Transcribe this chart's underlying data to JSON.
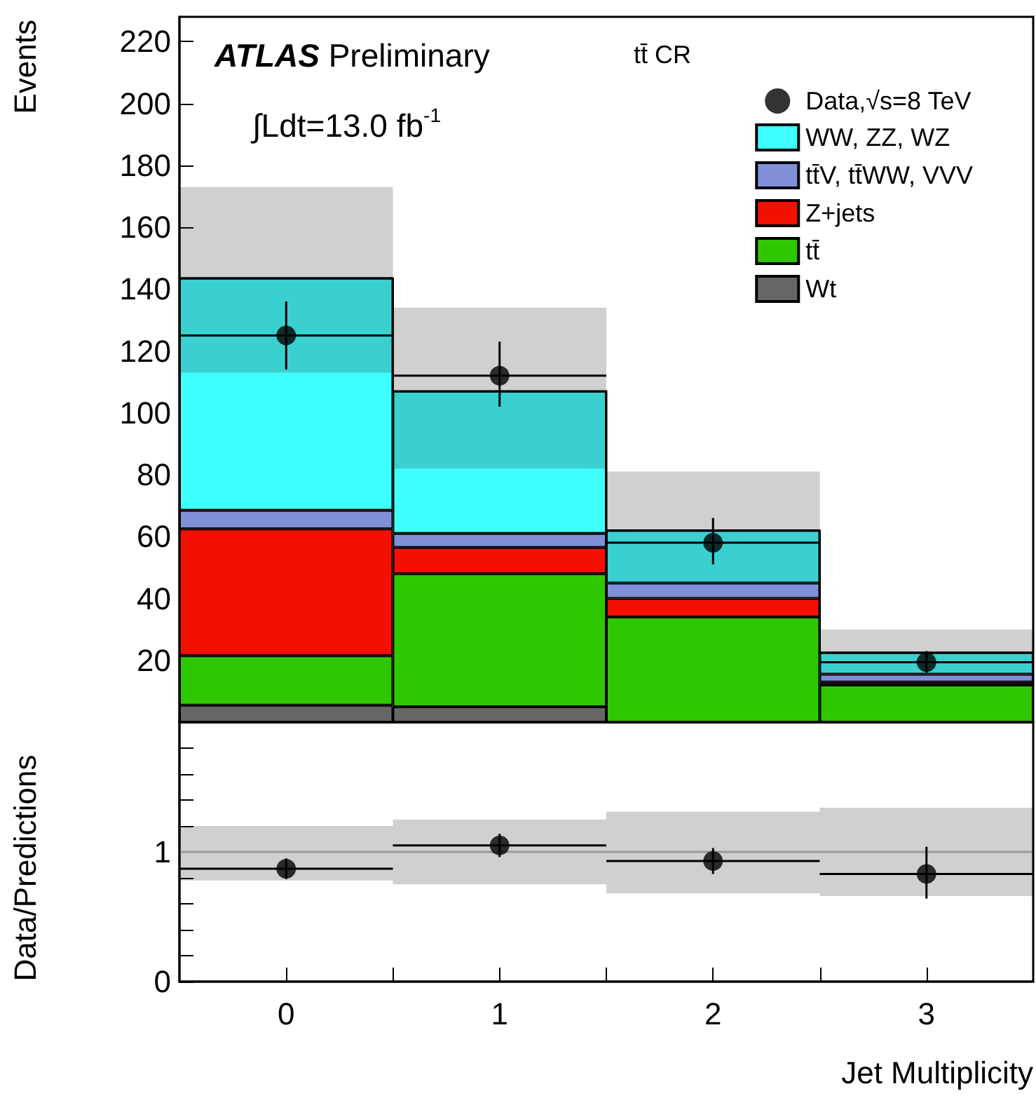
{
  "chart_data": [
    {
      "type": "bar",
      "stacked": true,
      "ylabel": "Events",
      "legend_title": "tt̄ CR",
      "legend": "top right",
      "tick_labels": "y",
      "annotations": [
        "ATLAS Preliminary",
        "∫Ldt=13.0 fb$^{-1}$"
      ],
      "x": [
        0,
        1,
        2,
        3
      ],
      "xlim": [
        -0.5,
        3.5
      ],
      "xticks": [
        0,
        1,
        2,
        3,
        {
          "value": 0.5,
          "label": null
        },
        {
          "value": 1.5,
          "label": null
        },
        {
          "value": 2.5,
          "label": null
        }
      ],
      "ylim": [
        0,
        228
      ],
      "yticks": [
        20,
        40,
        60,
        80,
        100,
        120,
        140,
        160,
        180,
        200,
        220
      ],
      "series": [
        {
          "name": "Data,√s=8 TeV",
          "type": "scatter",
          "marker": "circle",
          "color": "#000000",
          "values": [
            125,
            112,
            58,
            19.4
          ],
          "errors": [
            [
              114,
              136
            ],
            [
              102,
              123
            ],
            [
              51,
              66
            ],
            [
              16,
              23
            ]
          ],
          "xerrors": [
            0.5,
            0.5,
            0.5,
            0.5
          ]
        },
        {
          "name": "Wt",
          "color": "#666666",
          "values": [
            5.5,
            5,
            0,
            0
          ]
        },
        {
          "name": "tt̄",
          "color": "#2fc800",
          "values": [
            16,
            43,
            34,
            12
          ]
        },
        {
          "name": "Z+jets",
          "color": "#f41000",
          "values": [
            41,
            8.5,
            6,
            1
          ]
        },
        {
          "name": "tt̄V, tt̄WW, VVV",
          "color": "#7f8fd8",
          "values": [
            6,
            4.5,
            5,
            2.5
          ]
        },
        {
          "name": "WW, ZZ, WZ",
          "color": "#40ffff",
          "values": [
            75,
            46,
            17,
            7
          ]
        },
        {
          "type": "step",
          "color": "#000000",
          "x": [
            -0.5,
            0.5,
            1.5,
            2.5,
            3.5
          ],
          "values": [
            143.5,
            107,
            62,
            22.5,
            22.5
          ],
          "lower": [
            113,
            82,
            45,
            15,
            15
          ],
          "upper": [
            173,
            134,
            81,
            30,
            30
          ]
        }
      ]
    },
    {
      "type": "scatter",
      "xlabel": "Jet Multiplicity",
      "ylabel": "Data/Predictions",
      "legend": false,
      "x": [
        0,
        1,
        2,
        3
      ],
      "xlim": [
        -0.5,
        3.5
      ],
      "xticks": [
        0,
        1,
        2,
        3,
        {
          "value": 0.5,
          "label": null
        },
        {
          "value": 1.5,
          "label": null
        },
        {
          "value": 2.5,
          "label": null
        }
      ],
      "ylim": [
        0,
        2
      ],
      "yticks": [
        0,
        {
          "value": 0.2,
          "label": null
        },
        {
          "value": 0.4,
          "label": null
        },
        {
          "value": 0.6,
          "label": null
        },
        {
          "value": 0.8,
          "label": null
        },
        1,
        {
          "value": 1.2,
          "label": null
        },
        {
          "value": 1.4,
          "label": null
        },
        {
          "value": 1.6,
          "label": null
        },
        {
          "value": 1.8,
          "label": null
        }
      ],
      "series": [
        {
          "type": "step",
          "color": "#999999",
          "x": [
            -0.5,
            0.5,
            1.5,
            2.5,
            3.5
          ],
          "values": [
            1,
            1,
            1,
            1,
            1
          ],
          "lower": [
            0.78,
            0.75,
            0.68,
            0.66,
            0.66
          ],
          "upper": [
            1.2,
            1.25,
            1.31,
            1.34,
            1.34
          ]
        },
        {
          "marker": "circle",
          "color": "#000000",
          "values": [
            0.87,
            1.05,
            0.93,
            0.83
          ],
          "errors": [
            [
              0.79,
              0.95
            ],
            [
              0.96,
              1.14
            ],
            [
              0.83,
              1.03
            ],
            [
              0.64,
              1.04
            ]
          ],
          "xerrors": [
            0.5,
            0.5,
            0.5,
            0.5
          ]
        }
      ]
    }
  ]
}
